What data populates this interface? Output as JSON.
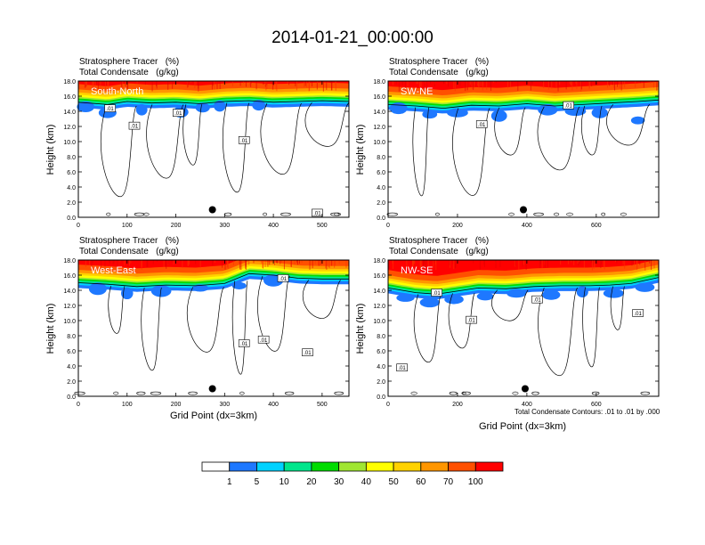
{
  "title": "2014-01-21_00:00:00",
  "subtitle_line1": "Stratosphere Tracer   (%)",
  "subtitle_line2": "Total Condensate   (g/kg)",
  "ylabel": "Height (km)",
  "xlabel": "Grid Point (dx=3km)",
  "contour_note": "Total Condensate Contours: .01 to .01 by .000",
  "colors": {
    "levels": [
      "#ffffff",
      "#1e78ff",
      "#00d2ff",
      "#00e68c",
      "#00dc00",
      "#a0e632",
      "#ffff00",
      "#ffd200",
      "#ff9600",
      "#ff5000",
      "#ff0000"
    ],
    "contour": "#000000",
    "marker": "#000000"
  },
  "colorbar": {
    "labels": [
      "1",
      "5",
      "10",
      "20",
      "30",
      "40",
      "50",
      "60",
      "70",
      "100"
    ]
  },
  "chart_data": [
    {
      "type": "heatmap",
      "title": "South-North",
      "xlabel": "",
      "ylabel": "Height (km)",
      "xlim": [
        0,
        555
      ],
      "ylim": [
        0,
        18
      ],
      "xticks": [
        0,
        100,
        200,
        300,
        400,
        500
      ],
      "yticks": [
        "0.0",
        "2.0",
        "4.0",
        "6.0",
        "8.0",
        "10.0",
        "12.0",
        "14.0",
        "16.0",
        "18.0"
      ],
      "tropopause_km": [
        [
          0,
          15.5
        ],
        [
          60,
          15.2
        ],
        [
          100,
          15.6
        ],
        [
          150,
          15.4
        ],
        [
          200,
          15.5
        ],
        [
          250,
          15.3
        ],
        [
          300,
          15.6
        ],
        [
          350,
          15.7
        ],
        [
          400,
          15.5
        ],
        [
          450,
          15.6
        ],
        [
          500,
          15.7
        ],
        [
          555,
          15.6
        ]
      ],
      "dip_cells": [
        [
          15,
          14.6
        ],
        [
          60,
          13.8
        ],
        [
          130,
          14.2
        ],
        [
          210,
          13.9
        ],
        [
          255,
          14.5
        ],
        [
          290,
          14.7
        ],
        [
          370,
          14.8
        ]
      ],
      "contour_labels": [
        [
          65,
          14.4,
          ".01"
        ],
        [
          115,
          12.1,
          ".01"
        ],
        [
          205,
          13.8,
          ".01"
        ],
        [
          340,
          10.2,
          ".01"
        ],
        [
          490,
          0.6,
          ".01"
        ]
      ],
      "marker": [
        275,
        1.0
      ]
    },
    {
      "type": "heatmap",
      "title": "SW-NE",
      "xlabel": "",
      "ylabel": "Height (km)",
      "xlim": [
        0,
        780
      ],
      "ylim": [
        0,
        18
      ],
      "xticks": [
        0,
        200,
        400,
        600
      ],
      "yticks": [
        "0.0",
        "2.0",
        "4.0",
        "6.0",
        "8.0",
        "10.0",
        "12.0",
        "14.0",
        "16.0",
        "18.0"
      ],
      "tropopause_km": [
        [
          0,
          15.2
        ],
        [
          80,
          15.0
        ],
        [
          160,
          14.7
        ],
        [
          240,
          15.1
        ],
        [
          320,
          15.0
        ],
        [
          400,
          15.3
        ],
        [
          480,
          15.0
        ],
        [
          560,
          15.2
        ],
        [
          640,
          15.4
        ],
        [
          720,
          15.6
        ],
        [
          780,
          15.8
        ]
      ],
      "dip_cells": [
        [
          30,
          14.4
        ],
        [
          120,
          13.6
        ],
        [
          200,
          13.8
        ],
        [
          320,
          13.4
        ],
        [
          460,
          14.2
        ],
        [
          540,
          14.0
        ],
        [
          610,
          13.8
        ],
        [
          720,
          12.8
        ]
      ],
      "contour_labels": [
        [
          270,
          12.3,
          ".01"
        ],
        [
          520,
          14.8,
          ".01"
        ]
      ],
      "marker": [
        390,
        1.0
      ]
    },
    {
      "type": "heatmap",
      "title": "West-East",
      "xlabel": "Grid Point (dx=3km)",
      "ylabel": "Height (km)",
      "xlim": [
        0,
        555
      ],
      "ylim": [
        0,
        18
      ],
      "xticks": [
        0,
        100,
        200,
        300,
        400,
        500
      ],
      "yticks": [
        "0.0",
        "2.0",
        "4.0",
        "6.0",
        "8.0",
        "10.0",
        "12.0",
        "14.0",
        "16.0",
        "18.0"
      ],
      "tropopause_km": [
        [
          0,
          15.3
        ],
        [
          60,
          15.1
        ],
        [
          120,
          14.8
        ],
        [
          180,
          15.0
        ],
        [
          240,
          14.9
        ],
        [
          300,
          15.2
        ],
        [
          350,
          16.5
        ],
        [
          400,
          16.3
        ],
        [
          450,
          15.9
        ],
        [
          500,
          15.8
        ],
        [
          555,
          15.8
        ]
      ],
      "dip_cells": [
        [
          40,
          14.2
        ],
        [
          100,
          13.6
        ],
        [
          170,
          13.9
        ],
        [
          250,
          14.3
        ],
        [
          330,
          14.6
        ],
        [
          400,
          15.3
        ]
      ],
      "contour_labels": [
        [
          340,
          7.0,
          ".01"
        ],
        [
          380,
          7.5,
          ".01"
        ],
        [
          420,
          15.6,
          ".01"
        ],
        [
          470,
          5.8,
          ".01"
        ]
      ],
      "marker": [
        275,
        1.0
      ]
    },
    {
      "type": "heatmap",
      "title": "NW-SE",
      "xlabel": "Grid Point (dx=3km)",
      "ylabel": "Height (km)",
      "xlim": [
        0,
        780
      ],
      "ylim": [
        0,
        18
      ],
      "xticks": [
        0,
        200,
        400,
        600
      ],
      "yticks": [
        "0.0",
        "2.0",
        "4.0",
        "6.0",
        "8.0",
        "10.0",
        "12.0",
        "14.0",
        "16.0",
        "18.0"
      ],
      "tropopause_km": [
        [
          0,
          14.6
        ],
        [
          80,
          14.0
        ],
        [
          140,
          13.8
        ],
        [
          200,
          14.2
        ],
        [
          260,
          14.6
        ],
        [
          340,
          14.5
        ],
        [
          420,
          14.8
        ],
        [
          500,
          14.9
        ],
        [
          580,
          14.9
        ],
        [
          640,
          15.0
        ],
        [
          700,
          15.2
        ],
        [
          780,
          16.0
        ]
      ],
      "dip_cells": [
        [
          50,
          13.0
        ],
        [
          120,
          12.4
        ],
        [
          190,
          12.8
        ],
        [
          280,
          13.2
        ],
        [
          370,
          13.6
        ],
        [
          470,
          13.4
        ],
        [
          560,
          13.8
        ],
        [
          650,
          13.6
        ],
        [
          740,
          14.4
        ]
      ],
      "contour_labels": [
        [
          140,
          13.7,
          ".01"
        ],
        [
          240,
          10.1,
          ".01"
        ],
        [
          430,
          12.8,
          ".01"
        ],
        [
          720,
          11.0,
          ".01"
        ],
        [
          40,
          3.8,
          ".01"
        ]
      ],
      "marker": [
        395,
        1.0
      ]
    }
  ]
}
